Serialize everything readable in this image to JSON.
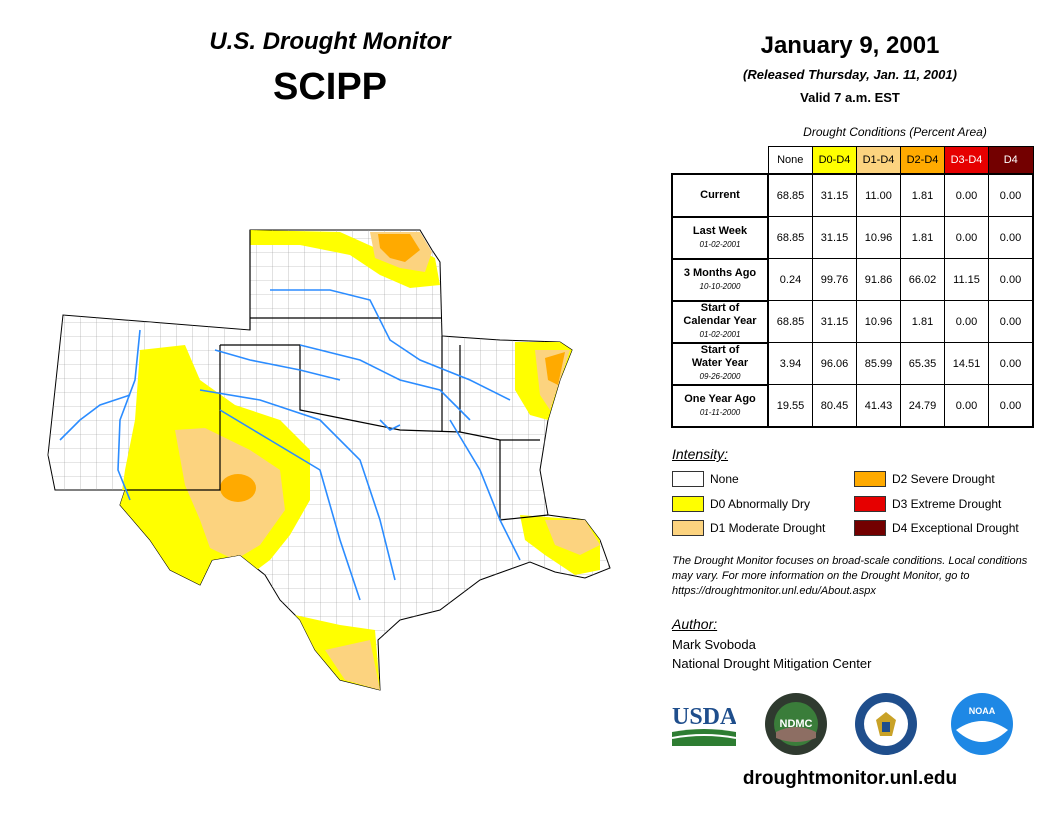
{
  "header": {
    "title_line1": "U.S. Drought Monitor",
    "title_line2": "SCIPP",
    "date": "January 9, 2001",
    "released": "(Released Thursday, Jan. 11, 2001)",
    "valid": "Valid 7 a.m. EST"
  },
  "conditions": {
    "title": "Drought Conditions (Percent Area)",
    "columns": [
      {
        "label": "None",
        "color": "#ffffff",
        "text_color": "#000000"
      },
      {
        "label": "D0-D4",
        "color": "#ffff00",
        "text_color": "#000000"
      },
      {
        "label": "D1-D4",
        "color": "#fcd37f",
        "text_color": "#000000"
      },
      {
        "label": "D2-D4",
        "color": "#ffaa00",
        "text_color": "#000000"
      },
      {
        "label": "D3-D4",
        "color": "#e60000",
        "text_color": "#ffffff"
      },
      {
        "label": "D4",
        "color": "#730000",
        "text_color": "#ffffff"
      }
    ],
    "rows": [
      {
        "label": "Current",
        "label2": "",
        "date": "",
        "values": [
          "68.85",
          "31.15",
          "11.00",
          "1.81",
          "0.00",
          "0.00"
        ]
      },
      {
        "label": "Last Week",
        "label2": "",
        "date": "01-02-2001",
        "values": [
          "68.85",
          "31.15",
          "10.96",
          "1.81",
          "0.00",
          "0.00"
        ]
      },
      {
        "label": "3 Months Ago",
        "label2": "",
        "date": "10-10-2000",
        "values": [
          "0.24",
          "99.76",
          "91.86",
          "66.02",
          "11.15",
          "0.00"
        ]
      },
      {
        "label": "Start of",
        "label2": "Calendar Year",
        "date": "01-02-2001",
        "values": [
          "68.85",
          "31.15",
          "10.96",
          "1.81",
          "0.00",
          "0.00"
        ]
      },
      {
        "label": "Start of",
        "label2": "Water Year",
        "date": "09-26-2000",
        "values": [
          "3.94",
          "96.06",
          "85.99",
          "65.35",
          "14.51",
          "0.00"
        ]
      },
      {
        "label": "One Year Ago",
        "label2": "",
        "date": "01-11-2000",
        "values": [
          "19.55",
          "80.45",
          "41.43",
          "24.79",
          "0.00",
          "0.00"
        ]
      }
    ]
  },
  "legend": {
    "title": "Intensity:",
    "items": [
      {
        "label": "None",
        "color": "#ffffff"
      },
      {
        "label": "D0 Abnormally Dry",
        "color": "#ffff00"
      },
      {
        "label": "D1 Moderate Drought",
        "color": "#fcd37f"
      },
      {
        "label": "D2 Severe Drought",
        "color": "#ffaa00"
      },
      {
        "label": "D3 Extreme Drought",
        "color": "#e60000"
      },
      {
        "label": "D4 Exceptional Drought",
        "color": "#730000"
      }
    ]
  },
  "note": "The Drought Monitor focuses on broad-scale conditions. Local conditions may vary. For more information on the Drought Monitor, go to https://droughtmonitor.unl.edu/About.aspx",
  "author": {
    "title": "Author:",
    "name": "Mark Svoboda",
    "org": "National Drought Mitigation Center"
  },
  "logos": {
    "usda": "USDA",
    "ndmc": "NDMC",
    "noaa": "NOAA"
  },
  "site": "droughtmonitor.unl.edu",
  "map_colors": {
    "d0": "#ffff00",
    "d1": "#fcd37f",
    "d2": "#ffaa00",
    "river": "#2b8cff",
    "county": "#999999",
    "state": "#000000"
  }
}
